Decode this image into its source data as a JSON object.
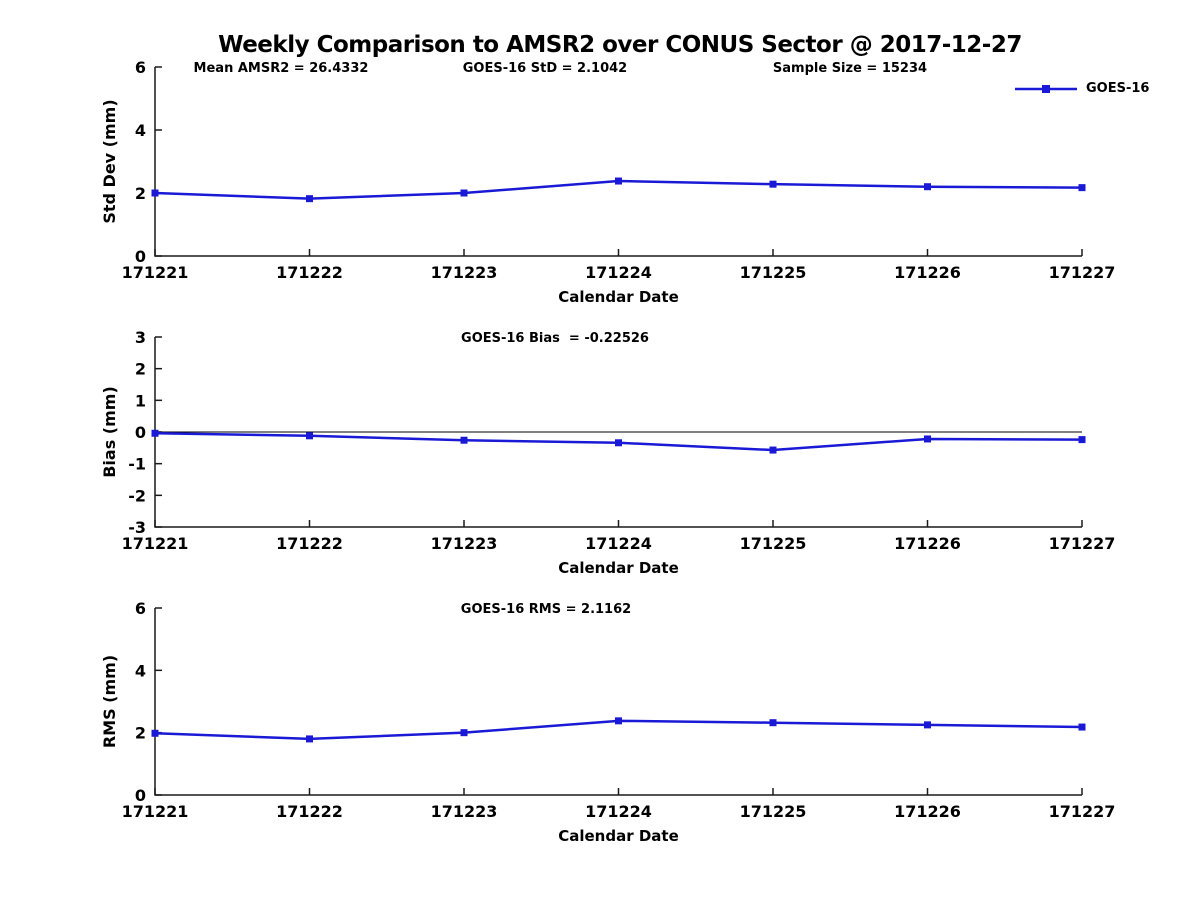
{
  "title": "Weekly Comparison to AMSR2 over CONUS Sector @ 2017-12-27",
  "legend": {
    "label": "GOES-16",
    "position": "top-right"
  },
  "colors": {
    "line": "#1a1ad6",
    "marker": "#1a1ad6",
    "axis": "#1a1a1a",
    "text": "#000000",
    "background": "#ffffff"
  },
  "chart_data": [
    {
      "type": "line",
      "name": "std-dev-panel",
      "ylabel": "Std Dev (mm)",
      "xlabel": "Calendar Date",
      "ylim": [
        0,
        6
      ],
      "yticks": [
        0,
        2,
        4,
        6
      ],
      "categories": [
        "171221",
        "171222",
        "171223",
        "171224",
        "171225",
        "171226",
        "171227"
      ],
      "series": [
        {
          "name": "GOES-16",
          "values": [
            2.0,
            1.82,
            2.0,
            2.38,
            2.28,
            2.2,
            2.17
          ]
        }
      ],
      "annotations": [
        "Mean AMSR2 = 26.4332",
        "GOES-16 StD = 2.1042",
        "Sample Size = 15234"
      ],
      "grid": false,
      "zero_line": false,
      "legend_position": "top-right"
    },
    {
      "type": "line",
      "name": "bias-panel",
      "ylabel": "Bias (mm)",
      "xlabel": "Calendar Date",
      "ylim": [
        -3,
        3
      ],
      "yticks": [
        -3,
        -2,
        -1,
        0,
        1,
        2,
        3
      ],
      "categories": [
        "171221",
        "171222",
        "171223",
        "171224",
        "171225",
        "171226",
        "171227"
      ],
      "series": [
        {
          "name": "GOES-16",
          "values": [
            -0.04,
            -0.12,
            -0.26,
            -0.34,
            -0.57,
            -0.22,
            -0.24
          ]
        }
      ],
      "annotations": [
        "GOES-16 Bias  = -0.22526"
      ],
      "grid": false,
      "zero_line": true,
      "legend_position": "none"
    },
    {
      "type": "line",
      "name": "rms-panel",
      "ylabel": "RMS (mm)",
      "xlabel": "Calendar Date",
      "ylim": [
        0,
        6
      ],
      "yticks": [
        0,
        2,
        4,
        6
      ],
      "categories": [
        "171221",
        "171222",
        "171223",
        "171224",
        "171225",
        "171226",
        "171227"
      ],
      "series": [
        {
          "name": "GOES-16",
          "values": [
            1.98,
            1.8,
            2.0,
            2.38,
            2.32,
            2.25,
            2.18
          ]
        }
      ],
      "annotations": [
        "GOES-16 RMS = 2.1162"
      ],
      "grid": false,
      "zero_line": false,
      "legend_position": "none"
    }
  ]
}
